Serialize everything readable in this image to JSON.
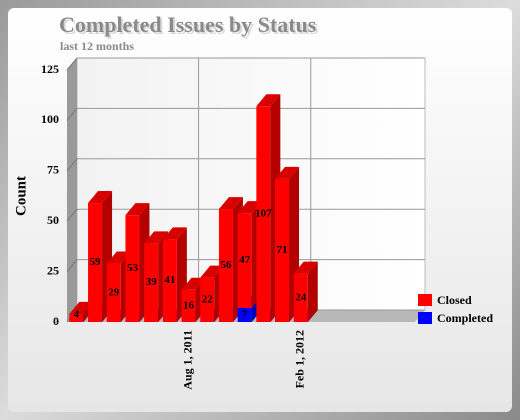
{
  "chart_data": {
    "type": "bar",
    "stacked": true,
    "title": "Completed Issues by Status",
    "subtitle": "last 12 months",
    "y_label": "Count",
    "categories": [
      null,
      null,
      null,
      null,
      null,
      null,
      "Aug 1, 2011",
      null,
      null,
      null,
      null,
      null,
      "Feb 1, 2012"
    ],
    "series": [
      {
        "name": "Completed",
        "color": "#0000ff",
        "values": [
          0,
          0,
          0,
          0,
          0,
          0,
          0,
          0,
          0,
          7,
          0,
          0,
          0
        ]
      },
      {
        "name": "Closed",
        "color": "#ff0000",
        "values": [
          4,
          59,
          29,
          53,
          39,
          41,
          16,
          22,
          56,
          47,
          107,
          71,
          24
        ]
      }
    ],
    "legend_order": [
      "Closed",
      "Completed"
    ],
    "ylim": [
      0,
      125
    ],
    "yticks": [
      0,
      25,
      50,
      75,
      100,
      125
    ],
    "grid": true,
    "legend": "bottom-right"
  }
}
